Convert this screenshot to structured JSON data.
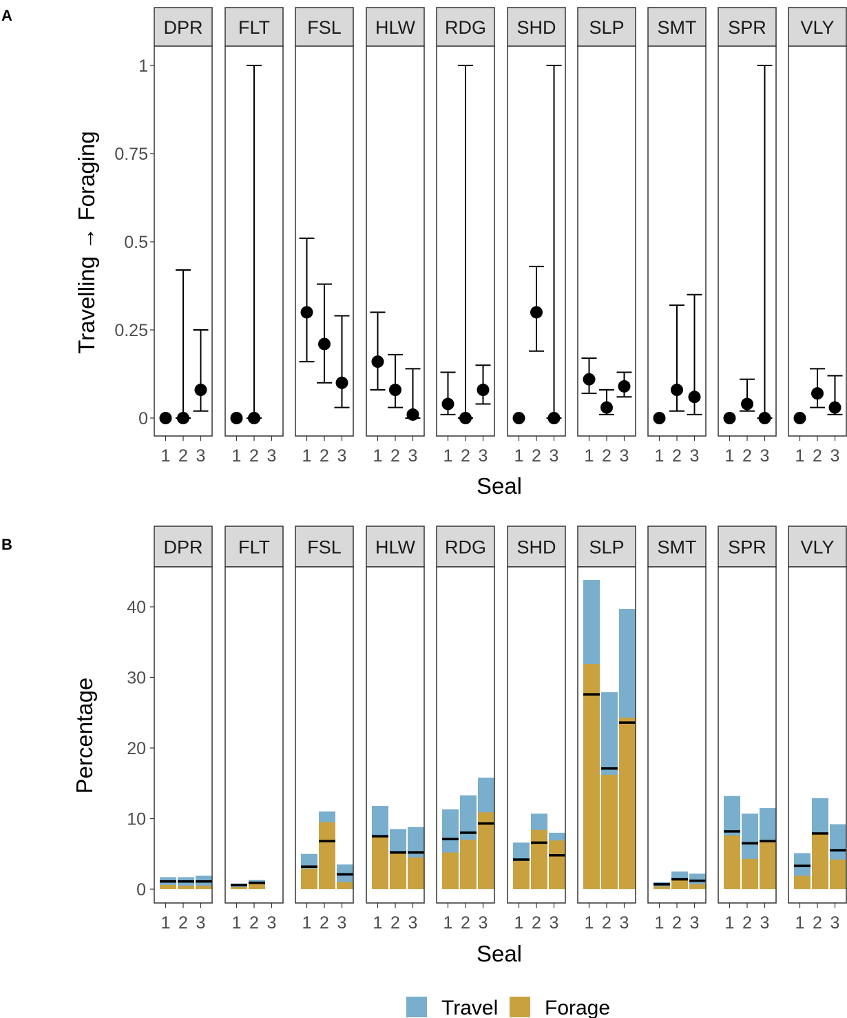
{
  "chart_data": [
    {
      "id": "A",
      "type": "scatter",
      "panel_tag": "A",
      "facets": [
        "DPR",
        "FLT",
        "FSL",
        "HLW",
        "RDG",
        "SHD",
        "SLP",
        "SMT",
        "SPR",
        "VLY"
      ],
      "x_categories": [
        "1",
        "2",
        "3"
      ],
      "xlabel": "Seal",
      "ylabel": "Travelling → Foraging",
      "ylim": [
        -0.05,
        1.05
      ],
      "y_ticks": [
        0,
        0.25,
        0.5,
        0.75,
        1
      ],
      "y_tick_labels": [
        "0",
        "0.25",
        "0.5",
        "0.75",
        "1"
      ],
      "series": [
        {
          "facet": "DPR",
          "points": [
            {
              "seal": "1",
              "estimate": 0,
              "lower": null,
              "upper": null
            },
            {
              "seal": "2",
              "estimate": 0,
              "lower": 0,
              "upper": 0.42
            },
            {
              "seal": "3",
              "estimate": 0.08,
              "lower": 0.02,
              "upper": 0.25
            }
          ]
        },
        {
          "facet": "FLT",
          "points": [
            {
              "seal": "1",
              "estimate": 0,
              "lower": null,
              "upper": null
            },
            {
              "seal": "2",
              "estimate": 0,
              "lower": 0,
              "upper": 1.0
            }
          ]
        },
        {
          "facet": "FSL",
          "points": [
            {
              "seal": "1",
              "estimate": 0.3,
              "lower": 0.16,
              "upper": 0.51
            },
            {
              "seal": "2",
              "estimate": 0.21,
              "lower": 0.1,
              "upper": 0.38
            },
            {
              "seal": "3",
              "estimate": 0.1,
              "lower": 0.03,
              "upper": 0.29
            }
          ]
        },
        {
          "facet": "HLW",
          "points": [
            {
              "seal": "1",
              "estimate": 0.16,
              "lower": 0.08,
              "upper": 0.3
            },
            {
              "seal": "2",
              "estimate": 0.08,
              "lower": 0.03,
              "upper": 0.18
            },
            {
              "seal": "3",
              "estimate": 0.01,
              "lower": 0,
              "upper": 0.14
            }
          ]
        },
        {
          "facet": "RDG",
          "points": [
            {
              "seal": "1",
              "estimate": 0.04,
              "lower": 0.01,
              "upper": 0.13
            },
            {
              "seal": "2",
              "estimate": 0,
              "lower": 0,
              "upper": 1.0
            },
            {
              "seal": "3",
              "estimate": 0.08,
              "lower": 0.04,
              "upper": 0.15
            }
          ]
        },
        {
          "facet": "SHD",
          "points": [
            {
              "seal": "1",
              "estimate": 0,
              "lower": null,
              "upper": null
            },
            {
              "seal": "2",
              "estimate": 0.3,
              "lower": 0.19,
              "upper": 0.43
            },
            {
              "seal": "3",
              "estimate": 0,
              "lower": 0,
              "upper": 1.0
            }
          ]
        },
        {
          "facet": "SLP",
          "points": [
            {
              "seal": "1",
              "estimate": 0.11,
              "lower": 0.07,
              "upper": 0.17
            },
            {
              "seal": "2",
              "estimate": 0.03,
              "lower": 0.01,
              "upper": 0.08
            },
            {
              "seal": "3",
              "estimate": 0.09,
              "lower": 0.06,
              "upper": 0.13
            }
          ]
        },
        {
          "facet": "SMT",
          "points": [
            {
              "seal": "1",
              "estimate": 0,
              "lower": null,
              "upper": null
            },
            {
              "seal": "2",
              "estimate": 0.08,
              "lower": 0.02,
              "upper": 0.32
            },
            {
              "seal": "3",
              "estimate": 0.06,
              "lower": 0.01,
              "upper": 0.35
            }
          ]
        },
        {
          "facet": "SPR",
          "points": [
            {
              "seal": "1",
              "estimate": 0,
              "lower": null,
              "upper": null
            },
            {
              "seal": "2",
              "estimate": 0.04,
              "lower": 0.02,
              "upper": 0.11
            },
            {
              "seal": "3",
              "estimate": 0,
              "lower": 0,
              "upper": 1.0
            }
          ]
        },
        {
          "facet": "VLY",
          "points": [
            {
              "seal": "1",
              "estimate": 0,
              "lower": null,
              "upper": null
            },
            {
              "seal": "2",
              "estimate": 0.07,
              "lower": 0.03,
              "upper": 0.14
            },
            {
              "seal": "3",
              "estimate": 0.03,
              "lower": 0.01,
              "upper": 0.12
            }
          ]
        }
      ]
    },
    {
      "id": "B",
      "type": "bar",
      "stacked": true,
      "panel_tag": "B",
      "facets": [
        "DPR",
        "FLT",
        "FSL",
        "HLW",
        "RDG",
        "SHD",
        "SLP",
        "SMT",
        "SPR",
        "VLY"
      ],
      "x_categories": [
        "1",
        "2",
        "3"
      ],
      "xlabel": "Seal",
      "ylabel": "Percentage",
      "ylim": [
        -2.3,
        46
      ],
      "y_ticks": [
        0,
        10,
        20,
        30,
        40
      ],
      "y_tick_labels": [
        "0",
        "10",
        "20",
        "30",
        "40"
      ],
      "series_names": [
        "Travel",
        "Forage"
      ],
      "series_colors": {
        "Travel": "#79aecd",
        "Forage": "#c9a23f"
      },
      "marker_color": "#000000",
      "series": [
        {
          "facet": "DPR",
          "bars": [
            {
              "seal": "1",
              "total": 1.7,
              "forage": 0.6,
              "marker": 1.1
            },
            {
              "seal": "2",
              "total": 1.7,
              "forage": 0.5,
              "marker": 1.1
            },
            {
              "seal": "3",
              "total": 1.9,
              "forage": 0.5,
              "marker": 1.1
            }
          ]
        },
        {
          "facet": "FLT",
          "bars": [
            {
              "seal": "1",
              "total": 0.8,
              "forage": 0.3,
              "marker": 0.6
            },
            {
              "seal": "2",
              "total": 1.3,
              "forage": 0.8,
              "marker": 0.9
            }
          ]
        },
        {
          "facet": "FSL",
          "bars": [
            {
              "seal": "1",
              "total": 5.0,
              "forage": 2.9,
              "marker": 3.2
            },
            {
              "seal": "2",
              "total": 11.0,
              "forage": 9.5,
              "marker": 6.8
            },
            {
              "seal": "3",
              "total": 3.5,
              "forage": 1.0,
              "marker": 2.1
            }
          ]
        },
        {
          "facet": "HLW",
          "bars": [
            {
              "seal": "1",
              "total": 11.8,
              "forage": 7.6,
              "marker": 7.5
            },
            {
              "seal": "2",
              "total": 8.5,
              "forage": 5.0,
              "marker": 5.2
            },
            {
              "seal": "3",
              "total": 8.8,
              "forage": 4.5,
              "marker": 5.2
            }
          ]
        },
        {
          "facet": "RDG",
          "bars": [
            {
              "seal": "1",
              "total": 11.3,
              "forage": 5.2,
              "marker": 7.1
            },
            {
              "seal": "2",
              "total": 13.3,
              "forage": 7.0,
              "marker": 8.0
            },
            {
              "seal": "3",
              "total": 15.8,
              "forage": 10.9,
              "marker": 9.3
            }
          ]
        },
        {
          "facet": "SHD",
          "bars": [
            {
              "seal": "1",
              "total": 6.6,
              "forage": 4.0,
              "marker": 4.2
            },
            {
              "seal": "2",
              "total": 10.7,
              "forage": 8.4,
              "marker": 6.6
            },
            {
              "seal": "3",
              "total": 8.0,
              "forage": 6.9,
              "marker": 4.8
            }
          ]
        },
        {
          "facet": "SLP",
          "bars": [
            {
              "seal": "1",
              "total": 43.8,
              "forage": 31.9,
              "marker": 27.6
            },
            {
              "seal": "2",
              "total": 27.9,
              "forage": 16.2,
              "marker": 17.1
            },
            {
              "seal": "3",
              "total": 39.7,
              "forage": 24.3,
              "marker": 23.6
            }
          ]
        },
        {
          "facet": "SMT",
          "bars": [
            {
              "seal": "1",
              "total": 1.0,
              "forage": 0.4,
              "marker": 0.7
            },
            {
              "seal": "2",
              "total": 2.5,
              "forage": 1.5,
              "marker": 1.4
            },
            {
              "seal": "3",
              "total": 2.2,
              "forage": 0.7,
              "marker": 1.2
            }
          ]
        },
        {
          "facet": "SPR",
          "bars": [
            {
              "seal": "1",
              "total": 13.2,
              "forage": 7.6,
              "marker": 8.2
            },
            {
              "seal": "2",
              "total": 10.7,
              "forage": 4.3,
              "marker": 6.5
            },
            {
              "seal": "3",
              "total": 11.5,
              "forage": 7.0,
              "marker": 6.8
            }
          ]
        },
        {
          "facet": "VLY",
          "bars": [
            {
              "seal": "1",
              "total": 5.1,
              "forage": 1.9,
              "marker": 3.3
            },
            {
              "seal": "2",
              "total": 12.9,
              "forage": 7.9,
              "marker": 7.9
            },
            {
              "seal": "3",
              "total": 9.2,
              "forage": 4.2,
              "marker": 5.5
            }
          ]
        }
      ]
    }
  ],
  "legend": {
    "items": [
      {
        "label": "Travel",
        "color": "#79aecd"
      },
      {
        "label": "Forage",
        "color": "#c9a23f"
      }
    ]
  }
}
